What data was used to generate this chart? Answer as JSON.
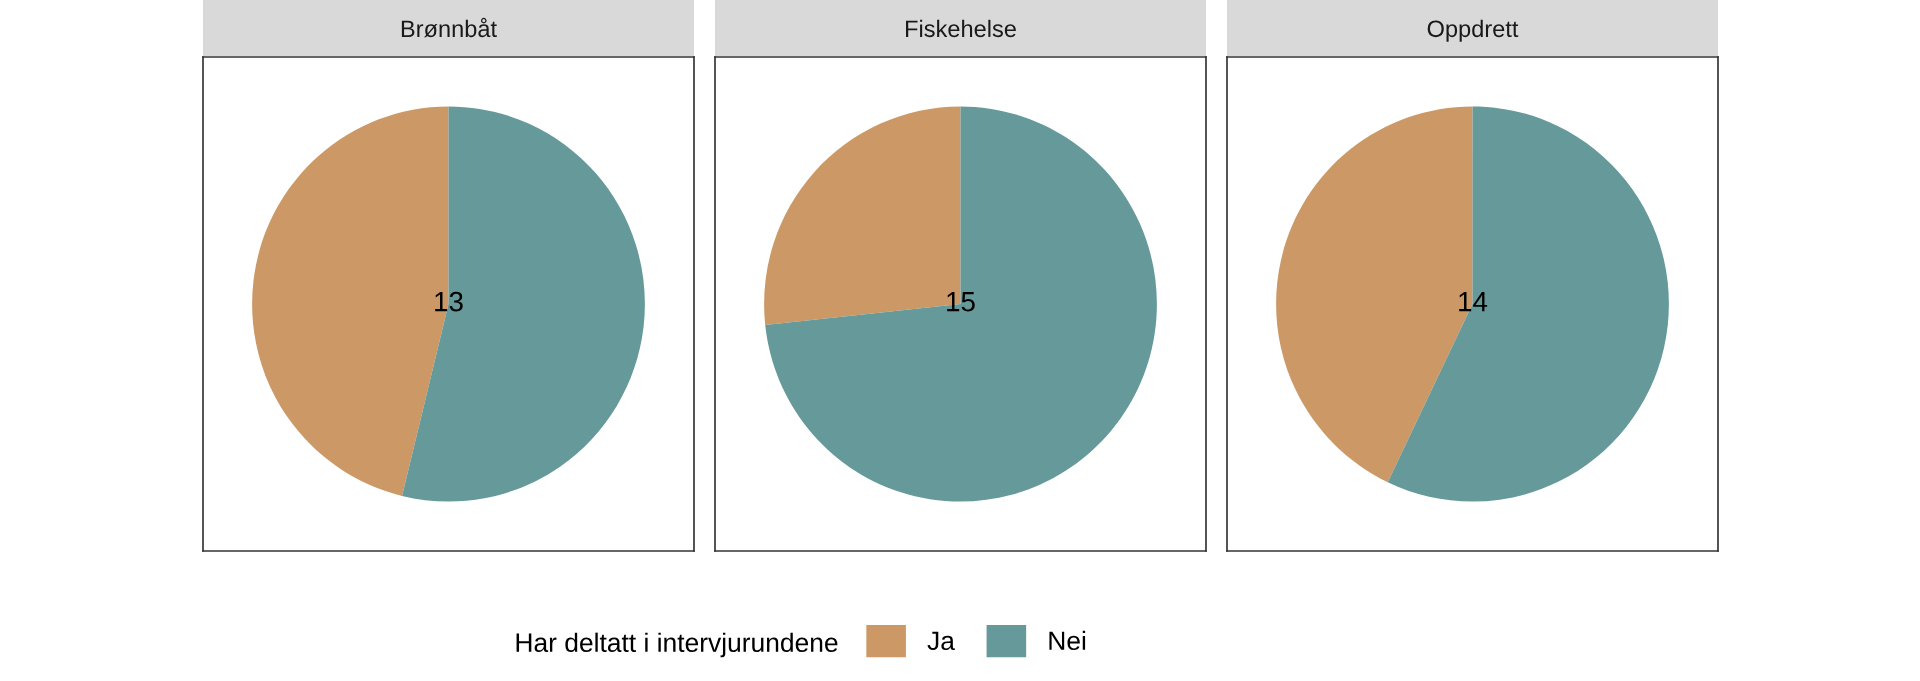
{
  "chart_data": [
    {
      "type": "pie",
      "title": "Brønnbåt",
      "categories": [
        "Ja",
        "Nei"
      ],
      "values": [
        46.2,
        53.8
      ],
      "colors": [
        "#cc9966",
        "#669999"
      ],
      "annotations": [
        "13"
      ],
      "legend": "bottom",
      "legend_title": "Har deltatt i intervjurundene"
    },
    {
      "type": "pie",
      "title": "Fiskehelse",
      "categories": [
        null,
        null
      ],
      "values": [
        26.7,
        73.3
      ],
      "colors": [
        "#cc9966",
        "#669999"
      ],
      "annotations": [
        "15"
      ]
    },
    {
      "type": "pie",
      "title": "Oppdrett",
      "categories": [
        null,
        null
      ],
      "values": [
        42.9,
        57.1
      ],
      "colors": [
        "#cc9966",
        "#669999"
      ],
      "annotations": [
        "14"
      ]
    }
  ]
}
